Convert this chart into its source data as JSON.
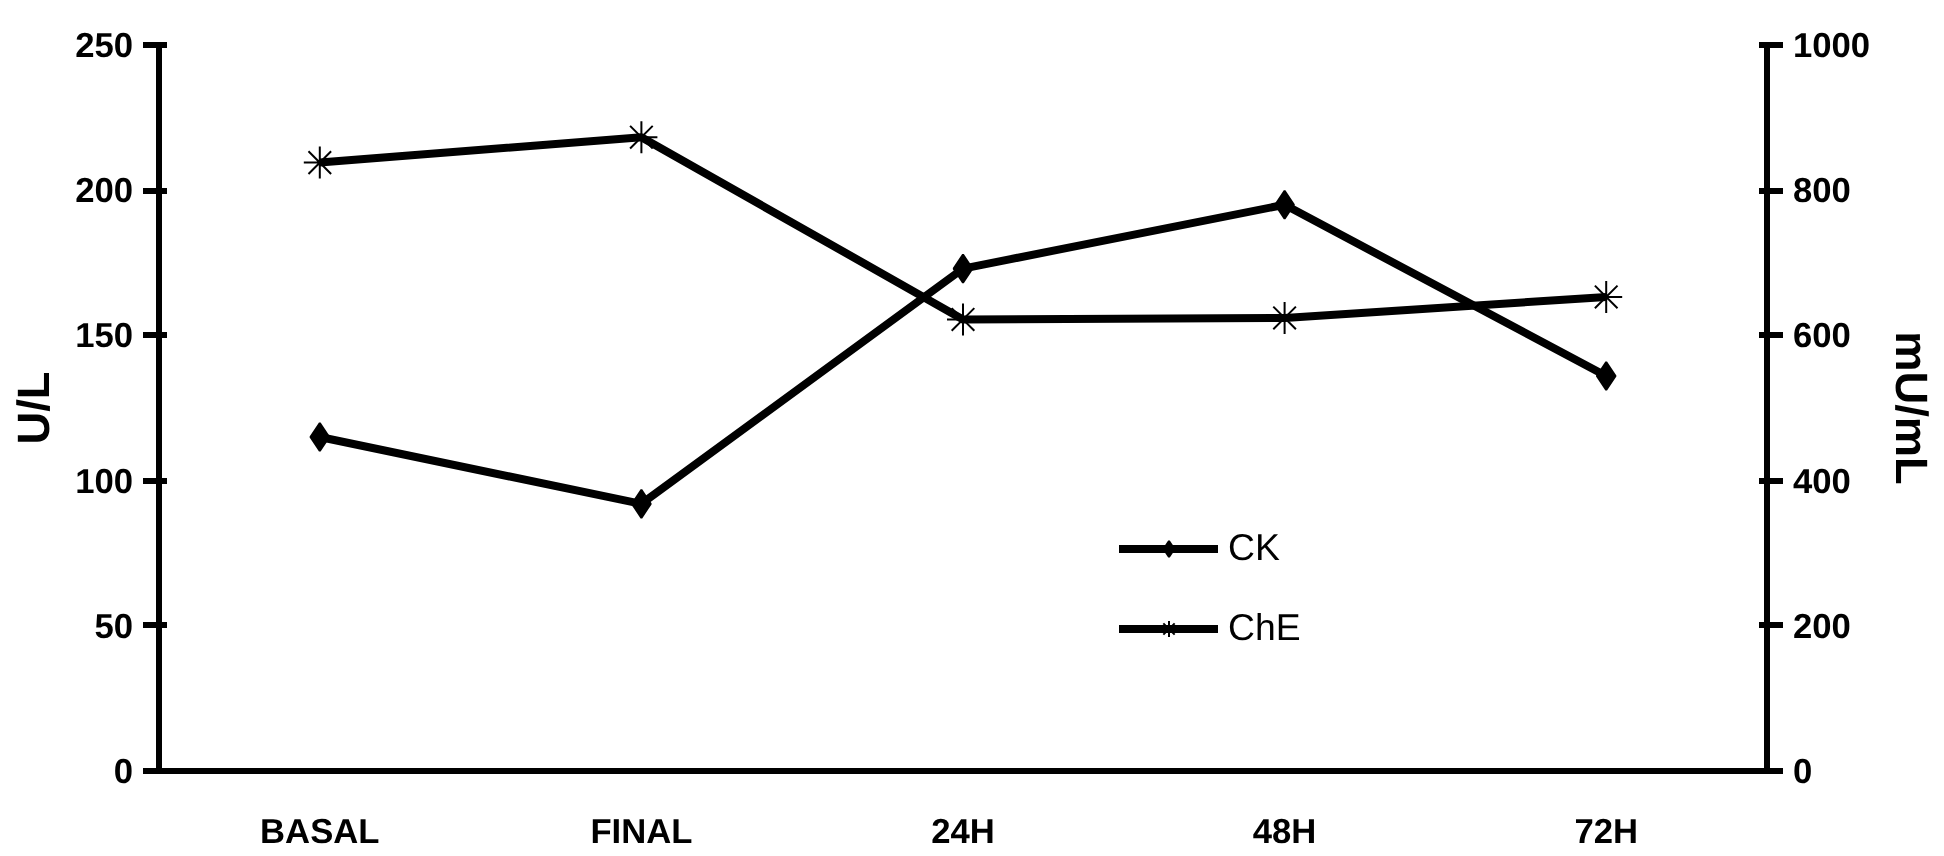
{
  "chart_data": {
    "type": "line",
    "categories": [
      "BASAL",
      "FINAL",
      "24H",
      "48H",
      "72H"
    ],
    "ylabel": "U/L",
    "y2label": "mU/mL",
    "ylim": [
      0,
      250
    ],
    "yticks": [
      0,
      50,
      100,
      150,
      200,
      250
    ],
    "y2lim": [
      0,
      1000
    ],
    "y2ticks": [
      0,
      200,
      400,
      600,
      800,
      1000
    ],
    "grid": false,
    "legend": "bottom right",
    "line_style": "solid",
    "series": [
      {
        "name": "CK",
        "color": "#000000",
        "marker": "diamond",
        "values": [
          115,
          92,
          173,
          195,
          136
        ]
      },
      {
        "name": "ChE",
        "color": "#000000",
        "marker": "cross",
        "axis": "y2",
        "values": [
          838,
          873,
          622,
          624,
          653
        ]
      }
    ]
  }
}
